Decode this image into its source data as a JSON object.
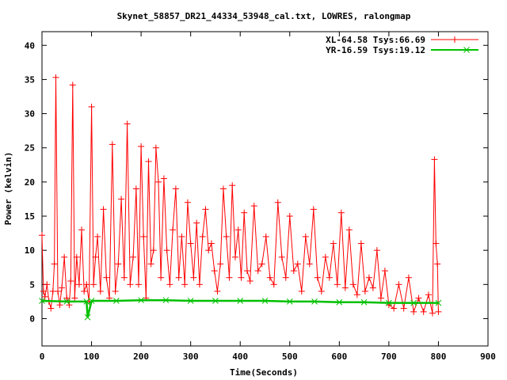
{
  "chart_data": {
    "type": "line",
    "title": "Skynet_58857_DR21_44334_53948_cal.txt, LOWRES, ralongmap",
    "xlabel": "Time(Seconds)",
    "ylabel": "Power (kelvin)",
    "xlim": [
      0,
      900
    ],
    "ylim": [
      -4,
      42
    ],
    "xticks": [
      0,
      100,
      200,
      300,
      400,
      500,
      600,
      700,
      800,
      900
    ],
    "yticks": [
      0,
      5,
      10,
      15,
      20,
      25,
      30,
      35,
      40
    ],
    "grid": false,
    "legend_position": "top-right",
    "series": [
      {
        "name": "XL-64.58 Tsys:66.69",
        "color": "#ff0000",
        "marker": "plus",
        "x": [
          0,
          3,
          6,
          10,
          14,
          18,
          22,
          25,
          28,
          32,
          36,
          40,
          45,
          50,
          55,
          58,
          62,
          66,
          70,
          75,
          80,
          85,
          90,
          95,
          100,
          104,
          108,
          112,
          118,
          124,
          130,
          136,
          142,
          148,
          154,
          160,
          166,
          172,
          178,
          184,
          190,
          195,
          200,
          205,
          210,
          215,
          220,
          225,
          230,
          235,
          240,
          246,
          252,
          258,
          264,
          270,
          276,
          282,
          288,
          294,
          300,
          306,
          312,
          318,
          324,
          330,
          336,
          342,
          348,
          354,
          360,
          366,
          372,
          378,
          384,
          390,
          396,
          402,
          408,
          414,
          420,
          428,
          436,
          444,
          452,
          460,
          468,
          476,
          484,
          492,
          500,
          508,
          516,
          524,
          532,
          540,
          548,
          556,
          564,
          572,
          580,
          588,
          596,
          604,
          612,
          620,
          628,
          636,
          644,
          652,
          660,
          668,
          676,
          684,
          692,
          700,
          710,
          720,
          730,
          740,
          750,
          760,
          770,
          780,
          788,
          792,
          795,
          798,
          800
        ],
        "values": [
          12.2,
          4.0,
          3.2,
          5.0,
          2.5,
          1.5,
          4.0,
          8.0,
          35.3,
          4.0,
          2.0,
          4.5,
          9.0,
          3.0,
          2.0,
          5.5,
          34.2,
          3.0,
          9.0,
          5.0,
          13.0,
          4.0,
          5.0,
          2.5,
          31.0,
          5.0,
          9.0,
          12.0,
          4.0,
          16.0,
          6.0,
          3.0,
          25.5,
          4.0,
          8.0,
          17.5,
          6.0,
          28.5,
          5.0,
          9.0,
          19.0,
          5.0,
          25.2,
          12.0,
          3.0,
          23.0,
          8.0,
          10.0,
          25.0,
          20.0,
          6.0,
          20.5,
          10.0,
          5.0,
          13.0,
          19.0,
          6.0,
          12.0,
          5.0,
          17.0,
          11.0,
          6.0,
          14.0,
          5.0,
          12.0,
          16.0,
          10.0,
          11.0,
          7.0,
          4.0,
          8.0,
          19.0,
          12.0,
          6.0,
          19.5,
          9.0,
          13.0,
          6.0,
          15.5,
          7.0,
          5.5,
          16.5,
          7.0,
          8.0,
          12.0,
          6.0,
          5.0,
          17.0,
          9.0,
          6.0,
          15.0,
          7.0,
          8.0,
          4.0,
          12.0,
          8.0,
          16.0,
          6.0,
          4.0,
          9.0,
          6.0,
          11.0,
          5.0,
          15.5,
          4.5,
          13.0,
          5.0,
          3.5,
          11.0,
          4.0,
          6.0,
          4.5,
          10.0,
          3.0,
          7.0,
          2.0,
          1.5,
          5.0,
          1.5,
          6.0,
          1.0,
          3.0,
          1.0,
          3.5,
          0.8,
          23.3,
          11.0,
          8.0,
          1.0
        ]
      },
      {
        "name": "YR-16.59 Tsys:19.12",
        "color": "#00c000",
        "marker": "cross",
        "x": [
          0,
          50,
          90,
          92,
          100,
          150,
          200,
          250,
          300,
          350,
          400,
          450,
          500,
          550,
          600,
          650,
          700,
          750,
          800
        ],
        "values": [
          2.6,
          2.5,
          2.5,
          0.2,
          2.6,
          2.6,
          2.7,
          2.7,
          2.6,
          2.6,
          2.6,
          2.6,
          2.5,
          2.5,
          2.4,
          2.4,
          2.3,
          2.3,
          2.3
        ]
      }
    ]
  }
}
